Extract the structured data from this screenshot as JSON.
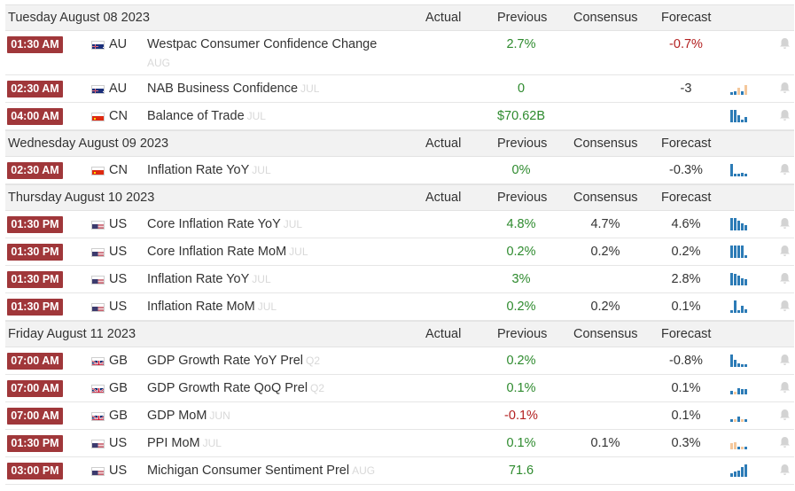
{
  "columns": {
    "actual": "Actual",
    "previous": "Previous",
    "consensus": "Consensus",
    "forecast": "Forecast"
  },
  "colors": {
    "badge": "#a0373a",
    "positive": "#2d8a2d",
    "negative": "#b32020",
    "spark_up": "#2c7bb6",
    "spark_down": "#f4c79b"
  },
  "days": [
    {
      "title": "Tuesday August 08 2023",
      "events": [
        {
          "time": "01:30 AM",
          "flag": "au",
          "country": "AU",
          "name": "Westpac Consumer Confidence Change",
          "period": "AUG",
          "period_below": true,
          "actual": "",
          "previous": "2.7%",
          "previous_sign": "pos",
          "consensus": "",
          "forecast": "-0.7%",
          "forecast_sign": "neg",
          "spark": []
        },
        {
          "time": "02:30 AM",
          "flag": "au",
          "country": "AU",
          "name": "NAB Business Confidence",
          "period": "JUL",
          "actual": "",
          "previous": "0",
          "previous_sign": "pos",
          "consensus": "",
          "forecast": "-3",
          "forecast_sign": "neutral",
          "spark": [
            0.2,
            0.3,
            -0.6,
            0.3,
            -0.8
          ]
        },
        {
          "time": "04:00 AM",
          "flag": "cn",
          "country": "CN",
          "name": "Balance of Trade",
          "period": "JUL",
          "actual": "",
          "previous": "$70.62B",
          "previous_sign": "pos",
          "consensus": "",
          "forecast": "",
          "forecast_sign": "neutral",
          "spark": [
            1,
            1,
            0.6,
            0.2,
            0.4
          ]
        }
      ]
    },
    {
      "title": "Wednesday August 09 2023",
      "events": [
        {
          "time": "02:30 AM",
          "flag": "cn",
          "country": "CN",
          "name": "Inflation Rate YoY",
          "period": "JUL",
          "actual": "",
          "previous": "0%",
          "previous_sign": "pos",
          "consensus": "",
          "forecast": "-0.3%",
          "forecast_sign": "neutral",
          "spark": [
            1,
            0.2,
            0.2,
            0.3,
            0.2
          ]
        }
      ]
    },
    {
      "title": "Thursday August 10 2023",
      "events": [
        {
          "time": "01:30 PM",
          "flag": "us",
          "country": "US",
          "name": "Core Inflation Rate YoY",
          "period": "JUL",
          "actual": "",
          "previous": "4.8%",
          "previous_sign": "pos",
          "consensus": "4.7%",
          "forecast": "4.6%",
          "forecast_sign": "neutral",
          "spark": [
            1,
            1,
            0.8,
            0.6,
            0.4
          ]
        },
        {
          "time": "01:30 PM",
          "flag": "us",
          "country": "US",
          "name": "Core Inflation Rate MoM",
          "period": "JUL",
          "actual": "",
          "previous": "0.2%",
          "previous_sign": "pos",
          "consensus": "0.2%",
          "forecast": "0.2%",
          "forecast_sign": "neutral",
          "spark": [
            1,
            1,
            1,
            1,
            0.2
          ]
        },
        {
          "time": "01:30 PM",
          "flag": "us",
          "country": "US",
          "name": "Inflation Rate YoY",
          "period": "JUL",
          "actual": "",
          "previous": "3%",
          "previous_sign": "pos",
          "consensus": "",
          "forecast": "2.8%",
          "forecast_sign": "neutral",
          "spark": [
            1,
            0.9,
            0.8,
            0.6,
            0.5
          ]
        },
        {
          "time": "01:30 PM",
          "flag": "us",
          "country": "US",
          "name": "Inflation Rate MoM",
          "period": "JUL",
          "actual": "",
          "previous": "0.2%",
          "previous_sign": "pos",
          "consensus": "0.2%",
          "forecast": "0.1%",
          "forecast_sign": "neutral",
          "spark": [
            0.2,
            1,
            0.2,
            0.6,
            0.3
          ]
        }
      ]
    },
    {
      "title": "Friday August 11 2023",
      "events": [
        {
          "time": "07:00 AM",
          "flag": "gb",
          "country": "GB",
          "name": "GDP Growth Rate YoY Prel",
          "period": "Q2",
          "actual": "",
          "previous": "0.2%",
          "previous_sign": "pos",
          "consensus": "",
          "forecast": "-0.8%",
          "forecast_sign": "neutral",
          "spark": [
            1,
            0.6,
            0.3,
            0.2,
            0.2
          ]
        },
        {
          "time": "07:00 AM",
          "flag": "gb",
          "country": "GB",
          "name": "GDP Growth Rate QoQ Prel",
          "period": "Q2",
          "actual": "",
          "previous": "0.1%",
          "previous_sign": "pos",
          "consensus": "",
          "forecast": "0.1%",
          "forecast_sign": "neutral",
          "spark": [
            0.3,
            -0.2,
            0.5,
            0.4,
            0.4
          ]
        },
        {
          "time": "07:00 AM",
          "flag": "gb",
          "country": "GB",
          "name": "GDP MoM",
          "period": "JUN",
          "actual": "",
          "previous": "-0.1%",
          "previous_sign": "neg",
          "consensus": "",
          "forecast": "0.1%",
          "forecast_sign": "neutral",
          "spark": [
            0.2,
            -0.2,
            0.4,
            -0.2,
            0.2
          ]
        },
        {
          "time": "01:30 PM",
          "flag": "us",
          "country": "US",
          "name": "PPI MoM",
          "period": "JUL",
          "actual": "",
          "previous": "0.1%",
          "previous_sign": "pos",
          "consensus": "0.1%",
          "forecast": "0.3%",
          "forecast_sign": "neutral",
          "spark": [
            -0.5,
            -0.6,
            0.2,
            -0.2,
            0.2
          ]
        },
        {
          "time": "03:00 PM",
          "flag": "us",
          "country": "US",
          "name": "Michigan Consumer Sentiment Prel",
          "period": "AUG",
          "actual": "",
          "previous": "71.6",
          "previous_sign": "pos",
          "consensus": "",
          "forecast": "",
          "forecast_sign": "neutral",
          "spark": [
            0.3,
            0.4,
            0.5,
            0.8,
            1
          ]
        }
      ]
    }
  ]
}
